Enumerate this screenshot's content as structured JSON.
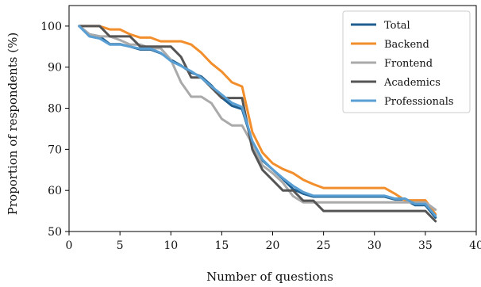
{
  "chart_data": {
    "type": "line",
    "xlabel": "Number of questions",
    "ylabel": "Proportion of respondents (%)",
    "xlim": [
      0,
      40
    ],
    "ylim": [
      50,
      105
    ],
    "xticks": [
      0,
      5,
      10,
      15,
      20,
      25,
      30,
      35,
      40
    ],
    "yticks": [
      50,
      60,
      70,
      80,
      90,
      100
    ],
    "legend_position": "top-right",
    "grid": false,
    "x": [
      1,
      2,
      3,
      4,
      5,
      6,
      7,
      8,
      9,
      10,
      11,
      12,
      13,
      14,
      15,
      16,
      17,
      18,
      19,
      20,
      21,
      22,
      23,
      24,
      25,
      26,
      27,
      28,
      29,
      30,
      31,
      32,
      33,
      34,
      35,
      36
    ],
    "series": [
      {
        "name": "Total",
        "color": "#1f5e8f",
        "values": [
          100,
          98,
          97.5,
          95.6,
          95.6,
          95,
          94.3,
          94.3,
          93.4,
          91.8,
          90.4,
          88.7,
          87.7,
          85.5,
          82.6,
          80.6,
          79.8,
          71.8,
          67.3,
          65.1,
          62.8,
          60.3,
          59.2,
          58.5,
          58.5,
          58.5,
          58.5,
          58.5,
          58.5,
          58.5,
          58.5,
          57.8,
          57.8,
          56.4,
          56.4,
          53.4
        ]
      },
      {
        "name": "Backend",
        "color": "#f28e2b",
        "values": [
          100,
          100,
          100,
          99.2,
          99.2,
          98,
          97.2,
          97.2,
          96.3,
          96.3,
          96.3,
          95.5,
          93.5,
          90.9,
          88.9,
          86.3,
          85.3,
          74.2,
          69.2,
          66.6,
          65.2,
          64.2,
          62.6,
          61.5,
          60.6,
          60.6,
          60.6,
          60.6,
          60.6,
          60.6,
          60.6,
          59.2,
          57.6,
          57.6,
          57.6,
          54.2
        ]
      },
      {
        "name": "Frontend",
        "color": "#aaaaaa",
        "values": [
          100,
          98,
          97.5,
          97.5,
          96.6,
          95.5,
          95.5,
          94.6,
          94.6,
          91.8,
          86.3,
          82.8,
          82.8,
          81.2,
          77.4,
          75.8,
          75.8,
          71.3,
          66.1,
          64.2,
          61.9,
          58.6,
          57.1,
          57.1,
          57.1,
          57.1,
          57.1,
          57.1,
          57.1,
          57.1,
          57.1,
          57.1,
          57.1,
          57.1,
          57.1,
          55.3
        ]
      },
      {
        "name": "Academics",
        "color": "#555555",
        "values": [
          100,
          100,
          100,
          97.5,
          97.5,
          97.5,
          95,
          95,
          95,
          95,
          92.5,
          87.5,
          87.5,
          85,
          82.5,
          82.5,
          82.5,
          70,
          65,
          62.5,
          60,
          60,
          57.5,
          57.5,
          55,
          55,
          55,
          55,
          55,
          55,
          55,
          55,
          55,
          55,
          55,
          52.5
        ]
      },
      {
        "name": "Professionals",
        "color": "#5a9fd4",
        "values": [
          100,
          97.5,
          97,
          95.5,
          95.5,
          95,
          94.5,
          94.5,
          93.5,
          91.5,
          90.3,
          89,
          87.4,
          85.3,
          83.3,
          81.3,
          80.3,
          72,
          67.5,
          65.1,
          63,
          61.1,
          59.6,
          58.7,
          58.7,
          58.7,
          58.7,
          58.7,
          58.7,
          58.7,
          58.7,
          58,
          58,
          56.7,
          56.7,
          53.8
        ]
      }
    ]
  }
}
